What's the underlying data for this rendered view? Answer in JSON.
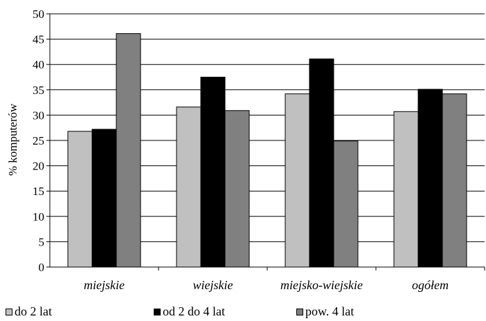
{
  "chart_data": {
    "type": "bar",
    "title": "",
    "xlabel": "",
    "ylabel": "% komputerów",
    "ylim": [
      0,
      50
    ],
    "yticks": [
      0,
      5,
      10,
      15,
      20,
      25,
      30,
      35,
      40,
      45,
      50
    ],
    "grid": true,
    "legend_position": "bottom",
    "categories": [
      "miejskie",
      "wiejskie",
      "miejsko-wiejskie",
      "ogółem"
    ],
    "series": [
      {
        "name": "do 2 lat",
        "color": "#c0c0c0",
        "values": [
          26.8,
          31.6,
          34.2,
          30.7
        ]
      },
      {
        "name": "od 2 do 4 lat",
        "color": "#000000",
        "values": [
          27.2,
          37.5,
          41.1,
          35.1
        ]
      },
      {
        "name": "pow. 4 lat",
        "color": "#808080",
        "values": [
          46.1,
          30.9,
          24.9,
          34.2
        ]
      }
    ]
  }
}
